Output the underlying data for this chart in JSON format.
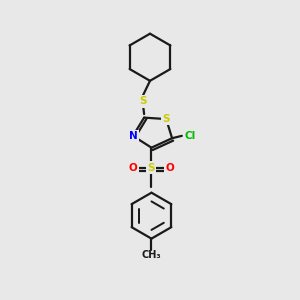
{
  "background_color": "#e8e8e8",
  "bond_color": "#1a1a1a",
  "S_color": "#cccc00",
  "N_color": "#0000ff",
  "Cl_color": "#00bb00",
  "O_color": "#ff0000",
  "figsize": [
    3.0,
    3.0
  ],
  "dpi": 100,
  "xlim": [
    0,
    10
  ],
  "ylim": [
    0,
    10
  ]
}
